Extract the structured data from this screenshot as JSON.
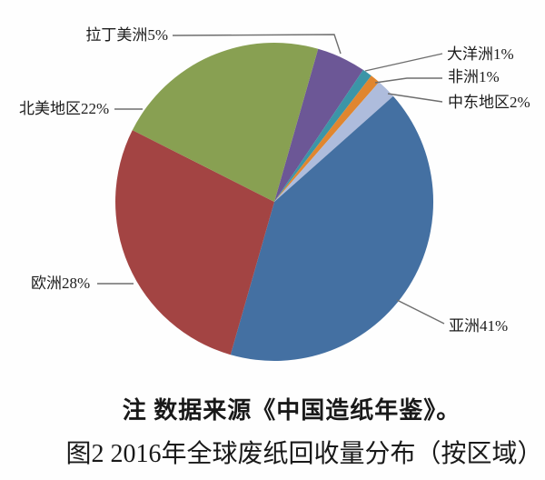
{
  "chart_data": {
    "type": "pie",
    "title": "图2 2016年全球废纸回收量分布（按区域）",
    "note": "注 数据来源《中国造纸年鉴》。",
    "unit": "%",
    "start_angle_deg": 16,
    "direction": "clockwise",
    "legend_position": "callout-labels",
    "slices": [
      {
        "id": "latin-america",
        "label": "拉丁美洲",
        "percent": 5,
        "display": "拉丁美洲5%",
        "color": "#6c5796"
      },
      {
        "id": "oceania",
        "label": "大洋洲",
        "percent": 1,
        "display": "大洋洲1%",
        "color": "#3b95a7"
      },
      {
        "id": "africa",
        "label": "非洲",
        "percent": 1,
        "display": "非洲1%",
        "color": "#e0862f"
      },
      {
        "id": "middle-east",
        "label": "中东地区",
        "percent": 2,
        "display": "中东地区2%",
        "color": "#aebcdc"
      },
      {
        "id": "asia",
        "label": "亚洲",
        "percent": 41,
        "display": "亚洲41%",
        "color": "#4470a2"
      },
      {
        "id": "europe",
        "label": "欧洲",
        "percent": 28,
        "display": "欧洲28%",
        "color": "#a34443"
      },
      {
        "id": "north-america",
        "label": "北美地区",
        "percent": 22,
        "display": "北美地区22%",
        "color": "#88a052"
      }
    ]
  },
  "captions": {
    "note": "注 数据来源《中国造纸年鉴》。",
    "figure": "图2 2016年全球废纸回收量分布（按区域）"
  }
}
